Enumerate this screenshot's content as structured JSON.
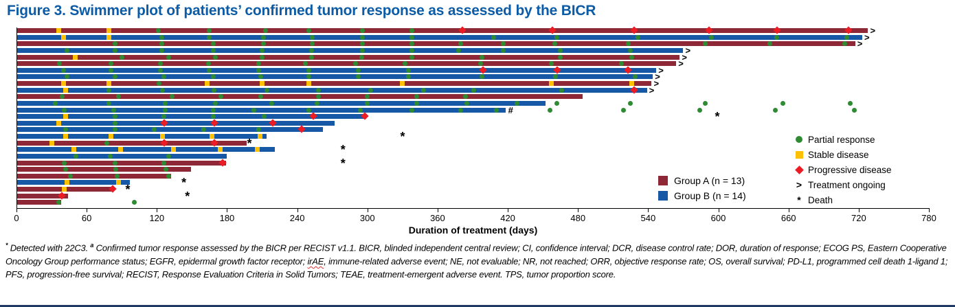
{
  "title": "Figure 3. Swimmer plot of patients’ confirmed tumor response as assessed by the BICR",
  "colors": {
    "title_blue": "#0B5BA7",
    "groupA": "#8E2836",
    "groupB": "#1657A6",
    "partial_response_green": "#2E8B32",
    "stable_disease_yellow": "#FFC000",
    "progressive_disease_red": "#EC1C24",
    "axis_black": "#000000",
    "bottom_rule_navy": "#1F3864"
  },
  "legend": {
    "response": [
      {
        "symbol": "circle",
        "label": "Partial response"
      },
      {
        "symbol": "square",
        "label": "Stable disease"
      },
      {
        "symbol": "diamond",
        "label": "Progressive disease"
      },
      {
        "symbol": ">",
        "label": "Treatment ongoing"
      },
      {
        "symbol": "*",
        "label": "Death"
      }
    ],
    "groups": [
      {
        "label": "Group A (n = 13)",
        "color_key": "groupA"
      },
      {
        "label": "Group B (n = 14)",
        "color_key": "groupB"
      }
    ]
  },
  "chart_data": {
    "type": "bar",
    "subtype": "swimmer-plot",
    "orientation": "horizontal",
    "xlabel": "Duration of treatment (days)",
    "axis": {
      "min": 0,
      "max": 780,
      "step": 60
    },
    "marker_meaning": {
      "pr": "Partial response",
      "sd": "Stable disease",
      "pd": "Progressive disease"
    },
    "annotation_meaning": {
      "ongoing": "Treatment ongoing (>)",
      "death": "Death (*)",
      "hash": "# annotation at bar end"
    },
    "patients": [
      {
        "group": "A",
        "days": 728,
        "ongoing": true,
        "assessments": [
          [
            "sd",
            36
          ],
          [
            "sd",
            79
          ],
          [
            "pr",
            121
          ],
          [
            "pr",
            165
          ],
          [
            "pr",
            213
          ],
          [
            "pr",
            250
          ],
          [
            "pr",
            296
          ],
          [
            "pr",
            338
          ],
          [
            "pd",
            381
          ],
          [
            "pd",
            458
          ],
          [
            "pd",
            528
          ],
          [
            "pd",
            592
          ],
          [
            "pd",
            650
          ],
          [
            "pd",
            711
          ]
        ]
      },
      {
        "group": "B",
        "days": 723,
        "ongoing": true,
        "assessments": [
          [
            "sd",
            40
          ],
          [
            "sd",
            79
          ],
          [
            "pr",
            124
          ],
          [
            "pr",
            165
          ],
          [
            "pr",
            211
          ],
          [
            "pr",
            253
          ],
          [
            "pr",
            296
          ],
          [
            "pr",
            338
          ],
          [
            "pr",
            408
          ],
          [
            "pr",
            462
          ],
          [
            "pr",
            531
          ],
          [
            "pr",
            594
          ],
          [
            "pr",
            650
          ],
          [
            "pr",
            710
          ]
        ]
      },
      {
        "group": "A",
        "days": 717,
        "ongoing": true,
        "assessments": [
          [
            "pr",
            84
          ],
          [
            "pr",
            124
          ],
          [
            "pr",
            168
          ],
          [
            "pr",
            211
          ],
          [
            "pr",
            253
          ],
          [
            "pr",
            296
          ],
          [
            "pr",
            338
          ],
          [
            "pr",
            380
          ],
          [
            "pr",
            416
          ],
          [
            "pr",
            460
          ],
          [
            "pr",
            523
          ],
          [
            "pr",
            589
          ],
          [
            "pr",
            644
          ],
          [
            "pr",
            708
          ]
        ]
      },
      {
        "group": "B",
        "days": 570,
        "ongoing": true,
        "assessments": [
          [
            "pr",
            43
          ],
          [
            "pr",
            84
          ],
          [
            "pr",
            124
          ],
          [
            "pr",
            168
          ],
          [
            "pr",
            210
          ],
          [
            "pr",
            252
          ],
          [
            "pr",
            296
          ],
          [
            "pr",
            338
          ],
          [
            "pr",
            378
          ],
          [
            "pr",
            416
          ],
          [
            "pr",
            465
          ],
          [
            "pr",
            525
          ]
        ]
      },
      {
        "group": "A",
        "days": 567,
        "ongoing": true,
        "assessments": [
          [
            "sd",
            50
          ],
          [
            "pr",
            90
          ],
          [
            "pr",
            130
          ],
          [
            "pr",
            170
          ],
          [
            "pr",
            210
          ],
          [
            "pr",
            252
          ],
          [
            "pr",
            295
          ],
          [
            "pr",
            338
          ],
          [
            "pr",
            398
          ],
          [
            "pr",
            465
          ],
          [
            "pr",
            526
          ]
        ]
      },
      {
        "group": "A",
        "days": 564,
        "ongoing": true,
        "assessments": [
          [
            "pr",
            37
          ],
          [
            "pr",
            81
          ],
          [
            "pr",
            123
          ],
          [
            "pr",
            164
          ],
          [
            "pr",
            207
          ],
          [
            "pr",
            247
          ],
          [
            "pr",
            290
          ],
          [
            "pr",
            332
          ],
          [
            "pr",
            397
          ],
          [
            "pr",
            457
          ],
          [
            "pr",
            517
          ]
        ]
      },
      {
        "group": "B",
        "days": 547,
        "ongoing": true,
        "assessments": [
          [
            "pr",
            40
          ],
          [
            "pr",
            81
          ],
          [
            "pr",
            123
          ],
          [
            "pr",
            165
          ],
          [
            "pr",
            207
          ],
          [
            "pr",
            250
          ],
          [
            "pr",
            292
          ],
          [
            "pr",
            335
          ],
          [
            "pd",
            399
          ],
          [
            "pd",
            462
          ],
          [
            "pd",
            523
          ]
        ]
      },
      {
        "group": "B",
        "days": 544,
        "ongoing": true,
        "assessments": [
          [
            "pr",
            43
          ],
          [
            "pr",
            84
          ],
          [
            "pr",
            126
          ],
          [
            "pr",
            168
          ],
          [
            "pr",
            209
          ],
          [
            "pr",
            250
          ],
          [
            "pr",
            292
          ],
          [
            "pr",
            335
          ],
          [
            "pr",
            398
          ],
          [
            "pr",
            461
          ],
          [
            "pr",
            529
          ]
        ]
      },
      {
        "group": "A",
        "days": 543,
        "ongoing": true,
        "assessments": [
          [
            "sd",
            40
          ],
          [
            "sd",
            79
          ],
          [
            "pr",
            122
          ],
          [
            "sd",
            163
          ],
          [
            "sd",
            210
          ],
          [
            "sd",
            250
          ],
          [
            "sd",
            330
          ],
          [
            "sd",
            457
          ],
          [
            "sd",
            526
          ]
        ]
      },
      {
        "group": "B",
        "days": 539,
        "ongoing": true,
        "assessments": [
          [
            "sd",
            42
          ],
          [
            "pr",
            79
          ],
          [
            "pr",
            125
          ],
          [
            "pr",
            169
          ],
          [
            "pr",
            214
          ],
          [
            "pr",
            258
          ],
          [
            "pr",
            303
          ],
          [
            "pr",
            348
          ],
          [
            "pr",
            391
          ],
          [
            "pr",
            466
          ],
          [
            "pd",
            528
          ]
        ]
      },
      {
        "group": "A",
        "days": 484,
        "ongoing": false,
        "assessments": [
          [
            "pr",
            39
          ],
          [
            "pr",
            87
          ],
          [
            "pr",
            133
          ],
          [
            "pr",
            175
          ],
          [
            "pr",
            209
          ],
          [
            "pr",
            258
          ],
          [
            "pr",
            300
          ],
          [
            "pr",
            342
          ],
          [
            "pr",
            384
          ]
        ]
      },
      {
        "group": "B",
        "days": 452,
        "ongoing": false,
        "assessments": [
          [
            "pr",
            33
          ],
          [
            "pr",
            79
          ],
          [
            "pr",
            127
          ],
          [
            "pr",
            170
          ],
          [
            "pr",
            218
          ],
          [
            "pr",
            257
          ],
          [
            "pr",
            300
          ],
          [
            "pr",
            342
          ],
          [
            "pr",
            385
          ],
          [
            "pr",
            428
          ]
        ],
        "post": [
          [
            "pr",
            462
          ],
          [
            "pr",
            525
          ],
          [
            "pr",
            589
          ],
          [
            "pr",
            655
          ],
          [
            "pr",
            713
          ]
        ]
      },
      {
        "group": "B",
        "days": 418,
        "ongoing": false,
        "hash": true,
        "assessments": [
          [
            "pr",
            41
          ],
          [
            "pr",
            83
          ],
          [
            "pr",
            127
          ],
          [
            "pr",
            168
          ],
          [
            "pr",
            203
          ],
          [
            "pr",
            250
          ],
          [
            "pr",
            294
          ],
          [
            "pr",
            338
          ],
          [
            "pr",
            380
          ],
          [
            "pr",
            410
          ]
        ],
        "post": [
          [
            "pr",
            456
          ],
          [
            "pr",
            519
          ],
          [
            "pr",
            584
          ],
          [
            "pr",
            649
          ],
          [
            "pr",
            716
          ]
        ]
      },
      {
        "group": "B",
        "days": 299,
        "ongoing": false,
        "death_day": 600,
        "assessments": [
          [
            "sd",
            42
          ],
          [
            "pr",
            84
          ],
          [
            "pr",
            126
          ],
          [
            "pr",
            168
          ],
          [
            "pr",
            212
          ],
          [
            "pd",
            254
          ],
          [
            "pd",
            298
          ]
        ]
      },
      {
        "group": "B",
        "days": 272,
        "ongoing": false,
        "assessments": [
          [
            "sd",
            36
          ],
          [
            "pr",
            84
          ],
          [
            "pd",
            126
          ],
          [
            "pd",
            169
          ],
          [
            "pd",
            219
          ]
        ]
      },
      {
        "group": "B",
        "days": 262,
        "ongoing": false,
        "assessments": [
          [
            "pr",
            42
          ],
          [
            "pr",
            84
          ],
          [
            "pr",
            118
          ],
          [
            "pr",
            160
          ],
          [
            "pr",
            207
          ],
          [
            "pd",
            244
          ]
        ]
      },
      {
        "group": "B",
        "days": 214,
        "ongoing": false,
        "death_day": 331,
        "assessments": [
          [
            "sd",
            42
          ],
          [
            "sd",
            81
          ],
          [
            "sd",
            125
          ],
          [
            "sd",
            167
          ],
          [
            "sd",
            208
          ]
        ]
      },
      {
        "group": "A",
        "days": 197,
        "ongoing": false,
        "death_day": 200,
        "assessments": [
          [
            "sd",
            30
          ],
          [
            "pr",
            77
          ],
          [
            "pd",
            126
          ],
          [
            "pd",
            169
          ]
        ]
      },
      {
        "group": "B",
        "days": 221,
        "ongoing": false,
        "death_day": 280,
        "assessments": [
          [
            "sd",
            49
          ],
          [
            "sd",
            89
          ],
          [
            "sd",
            134
          ],
          [
            "sd",
            174
          ],
          [
            "sd",
            206
          ]
        ]
      },
      {
        "group": "B",
        "days": 180,
        "ongoing": false,
        "assessments": [
          [
            "pr",
            51
          ],
          [
            "pr",
            80
          ],
          [
            "pr",
            130
          ]
        ]
      },
      {
        "group": "A",
        "days": 179,
        "ongoing": false,
        "death_day": 280,
        "assessments": [
          [
            "pr",
            41
          ],
          [
            "pr",
            84
          ],
          [
            "pr",
            126
          ],
          [
            "pd",
            176
          ]
        ]
      },
      {
        "group": "A",
        "days": 149,
        "ongoing": false,
        "assessments": [
          [
            "pr",
            42
          ],
          [
            "pr",
            85
          ],
          [
            "pr",
            128
          ]
        ]
      },
      {
        "group": "A",
        "days": 132,
        "ongoing": false,
        "assessments": [
          [
            "pr",
            46
          ],
          [
            "pr",
            86
          ],
          [
            "pr",
            130
          ]
        ]
      },
      {
        "group": "B",
        "days": 97,
        "ongoing": false,
        "death_day": 144,
        "assessments": [
          [
            "sd",
            43
          ],
          [
            "sd",
            87
          ]
        ]
      },
      {
        "group": "A",
        "days": 83,
        "ongoing": false,
        "death_day": 96,
        "assessments": [
          [
            "sd",
            41
          ],
          [
            "pd",
            82
          ]
        ]
      },
      {
        "group": "A",
        "days": 44,
        "ongoing": false,
        "death_day": 147,
        "assessments": [
          [
            "pd",
            39
          ]
        ]
      },
      {
        "group": "A",
        "days": 38,
        "ongoing": false,
        "assessments": [
          [
            "pr",
            36
          ]
        ],
        "post": [
          [
            "pr",
            101
          ]
        ]
      }
    ]
  },
  "footnote": {
    "sup1": "*",
    "part1": " Detected with 22C3. ",
    "sup2": "a",
    "part2": " Confirmed tumor response assessed by the BICR per RECIST v1.1. BICR, blinded independent central review; CI, confidence interval; DCR, disease control rate; DOR, duration of response; ECOG PS, Eastern Cooperative Oncology Group performance status; EGFR, epidermal growth factor receptor; ",
    "irae": "irAE",
    "part3": ", immune-related adverse event; NE, not evaluable; NR, not reached; ORR, objective response rate; OS, overall survival; PD-L1, programmed cell death 1-ligand 1; PFS, progression-free survival; RECIST, Response Evaluation Criteria in Solid Tumors; TEAE, treatment-emergent adverse event. TPS, tumor proportion score."
  }
}
